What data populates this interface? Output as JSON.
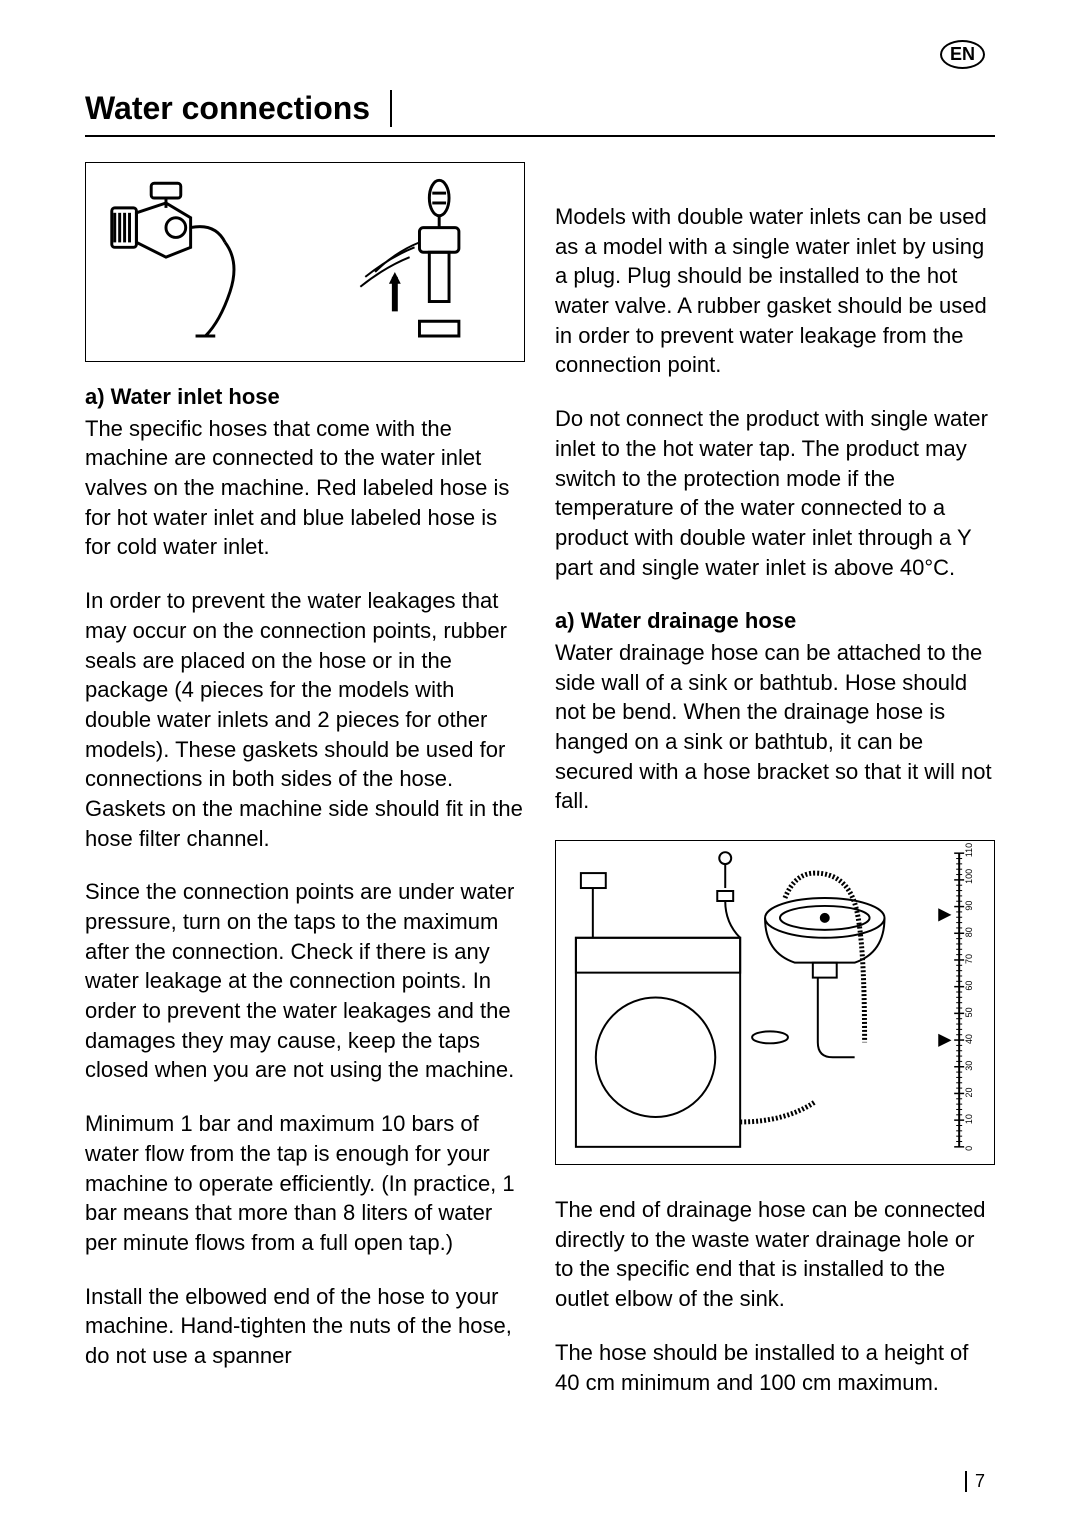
{
  "lang_badge": "EN",
  "page_title": "Water connections",
  "left": {
    "subhead_a": "a) Water inlet hose",
    "p1": "The specific hoses that come with the machine are connected to the water inlet valves on the machine. Red labeled hose is for hot water inlet and blue labeled hose is for cold water inlet.",
    "p2": "In order to prevent the water leakages that may occur on the connection points, rubber seals are placed on the hose or in the package (4 pieces for the models with double water inlets and 2 pieces for other models). These gaskets should be used for connections in both sides of the hose. Gaskets on the machine side should fit in the hose filter channel.",
    "p3": "Since the connection points are under water pressure, turn on the taps to the maximum after the connection. Check if there is any water leakage at the connection points. In order to prevent the water leakages and the damages they may cause, keep the taps closed when you are not using the machine.",
    "p4": "Minimum 1 bar and maximum 10 bars of water flow from the tap is enough for your machine to operate efficiently. (In practice, 1 bar means that more than 8 liters of water per minute flows from a full open tap.)",
    "p5": "Install the elbowed end of the hose to your machine. Hand-tighten the nuts of the hose, do not use a spanner"
  },
  "right": {
    "p1": "Models with double water inlets can be used as a model with a single water inlet by using a plug. Plug should be installed to the hot water valve. A rubber gasket should be used in order to prevent water leakage from the connection point.",
    "p2": "Do not connect the product with single water inlet to the hot water tap. The product may switch to the protection mode if the temperature of the water connected to a product with double water inlet through a Y part and single water inlet is above 40°C.",
    "subhead_a": "a) Water drainage hose",
    "p3": "Water drainage hose can be attached to the side wall of a sink or bathtub. Hose should not be bend. When the drainage hose is hanged on a sink or bathtub, it can be secured with a hose bracket so that it will not fall.",
    "p4": "The end of drainage hose can be connected directly to the waste water drainage hole or to the specific end that is installed to the outlet elbow of the sink.",
    "p5": " The hose should be installed to a height of 40 cm minimum and 100 cm maximum."
  },
  "ruler_labels": [
    "0",
    "10",
    "20",
    "30",
    "40",
    "50",
    "60",
    "70",
    "80",
    "90",
    "100",
    "110"
  ],
  "page_number": "7"
}
